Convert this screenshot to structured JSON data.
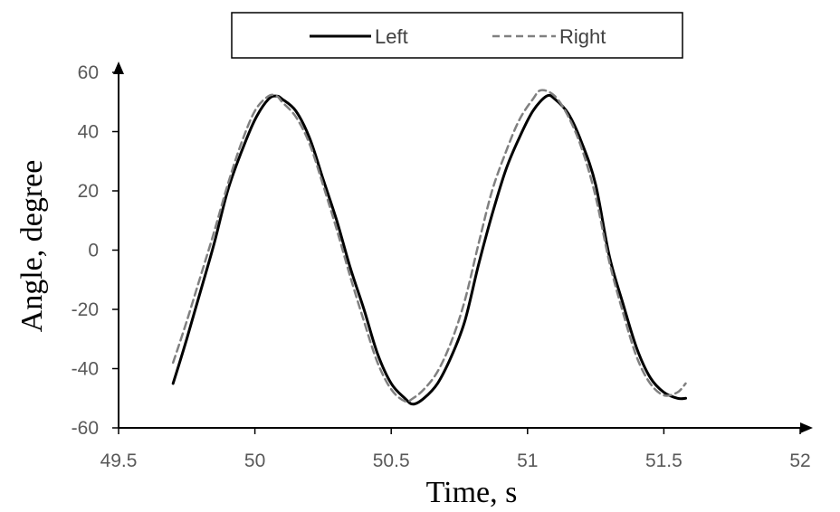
{
  "chart_data": {
    "type": "line",
    "title": "",
    "xlabel": "Time, s",
    "ylabel": "Angle, degree",
    "xlim": [
      49.5,
      52
    ],
    "ylim": [
      -60,
      60
    ],
    "xticks": [
      "49.5",
      "50",
      "50.5",
      "51",
      "51.5",
      "52"
    ],
    "yticks": [
      "60",
      "40",
      "20",
      "0",
      "-20",
      "-40",
      "-60"
    ],
    "grid": false,
    "legend": {
      "placement": "top-center",
      "entries": [
        "Left",
        "Right"
      ]
    },
    "series": [
      {
        "name": "Left",
        "style": "solid",
        "color": "#000000",
        "points": [
          [
            49.7,
            -45
          ],
          [
            49.75,
            -30
          ],
          [
            49.8,
            -14
          ],
          [
            49.85,
            2
          ],
          [
            49.9,
            20
          ],
          [
            49.95,
            33
          ],
          [
            50.0,
            44
          ],
          [
            50.05,
            51
          ],
          [
            50.08,
            52
          ],
          [
            50.1,
            51
          ],
          [
            50.15,
            47
          ],
          [
            50.2,
            38
          ],
          [
            50.25,
            24
          ],
          [
            50.3,
            10
          ],
          [
            50.35,
            -6
          ],
          [
            50.4,
            -20
          ],
          [
            50.45,
            -35
          ],
          [
            50.5,
            -45
          ],
          [
            50.55,
            -50
          ],
          [
            50.58,
            -52
          ],
          [
            50.62,
            -50
          ],
          [
            50.67,
            -45
          ],
          [
            50.72,
            -36
          ],
          [
            50.77,
            -24
          ],
          [
            50.82,
            -5
          ],
          [
            50.87,
            12
          ],
          [
            50.92,
            27
          ],
          [
            50.97,
            38
          ],
          [
            51.02,
            47
          ],
          [
            51.07,
            52
          ],
          [
            51.1,
            51
          ],
          [
            51.15,
            46
          ],
          [
            51.2,
            36
          ],
          [
            51.25,
            22
          ],
          [
            51.3,
            -2
          ],
          [
            51.35,
            -18
          ],
          [
            51.4,
            -33
          ],
          [
            51.45,
            -43
          ],
          [
            51.5,
            -48
          ],
          [
            51.55,
            -50
          ],
          [
            51.58,
            -50
          ]
        ]
      },
      {
        "name": "Right",
        "style": "dashed",
        "color": "#808080",
        "points": [
          [
            49.7,
            -38
          ],
          [
            49.75,
            -24
          ],
          [
            49.8,
            -9
          ],
          [
            49.85,
            6
          ],
          [
            49.9,
            22
          ],
          [
            49.95,
            36
          ],
          [
            50.0,
            47
          ],
          [
            50.05,
            52
          ],
          [
            50.08,
            52
          ],
          [
            50.1,
            50
          ],
          [
            50.15,
            45
          ],
          [
            50.2,
            36
          ],
          [
            50.25,
            22
          ],
          [
            50.3,
            7
          ],
          [
            50.35,
            -9
          ],
          [
            50.4,
            -24
          ],
          [
            50.45,
            -38
          ],
          [
            50.5,
            -47
          ],
          [
            50.55,
            -51
          ],
          [
            50.58,
            -50
          ],
          [
            50.62,
            -47
          ],
          [
            50.67,
            -41
          ],
          [
            50.72,
            -31
          ],
          [
            50.77,
            -17
          ],
          [
            50.82,
            2
          ],
          [
            50.87,
            20
          ],
          [
            50.92,
            33
          ],
          [
            50.97,
            44
          ],
          [
            51.02,
            51
          ],
          [
            51.05,
            54
          ],
          [
            51.1,
            52
          ],
          [
            51.15,
            45
          ],
          [
            51.2,
            34
          ],
          [
            51.25,
            18
          ],
          [
            51.3,
            -4
          ],
          [
            51.35,
            -21
          ],
          [
            51.4,
            -36
          ],
          [
            51.45,
            -45
          ],
          [
            51.5,
            -49
          ],
          [
            51.55,
            -48
          ],
          [
            51.58,
            -45
          ]
        ]
      }
    ]
  }
}
